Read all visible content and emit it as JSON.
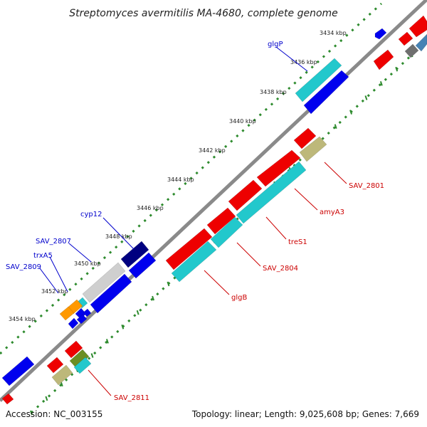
{
  "title": "Streptomyces avermitilis MA-4680, complete genome",
  "footer": {
    "accession": "Accession: NC_003155",
    "summary": "Topology: linear; Length: 9,025,608 bp; Genes: 7,669"
  },
  "colors": {
    "backbone": "#8a8a8a",
    "dots": "#2e8b2e",
    "label_blue": "#0000cc",
    "label_red": "#cc0000",
    "red": "#ee0000",
    "cyan": "#22c8cc",
    "blue": "#0000ee",
    "navy": "#000080",
    "grey": "#cfcfcf",
    "khaki": "#bdb87a",
    "orange": "#ff9900",
    "olive": "#6b8e23",
    "steelblue": "#4682b4",
    "darkgrey": "#6f6f6f"
  },
  "ticks": [
    "3434 kbp",
    "3436 kbp",
    "3438 kbp",
    "3440 kbp",
    "3442 kbp",
    "3444 kbp",
    "3446 kbp",
    "3448 kbp",
    "3450 kbp",
    "3452 kbp",
    "3454 kbp"
  ],
  "gene_labels_blue": [
    "glgP",
    "cyp12",
    "SAV_2807",
    "trxA5",
    "SAV_2809"
  ],
  "gene_labels_red": [
    "SAV_2801",
    "amyA3",
    "treS1",
    "SAV_2804",
    "glgB",
    "SAV_2811"
  ]
}
